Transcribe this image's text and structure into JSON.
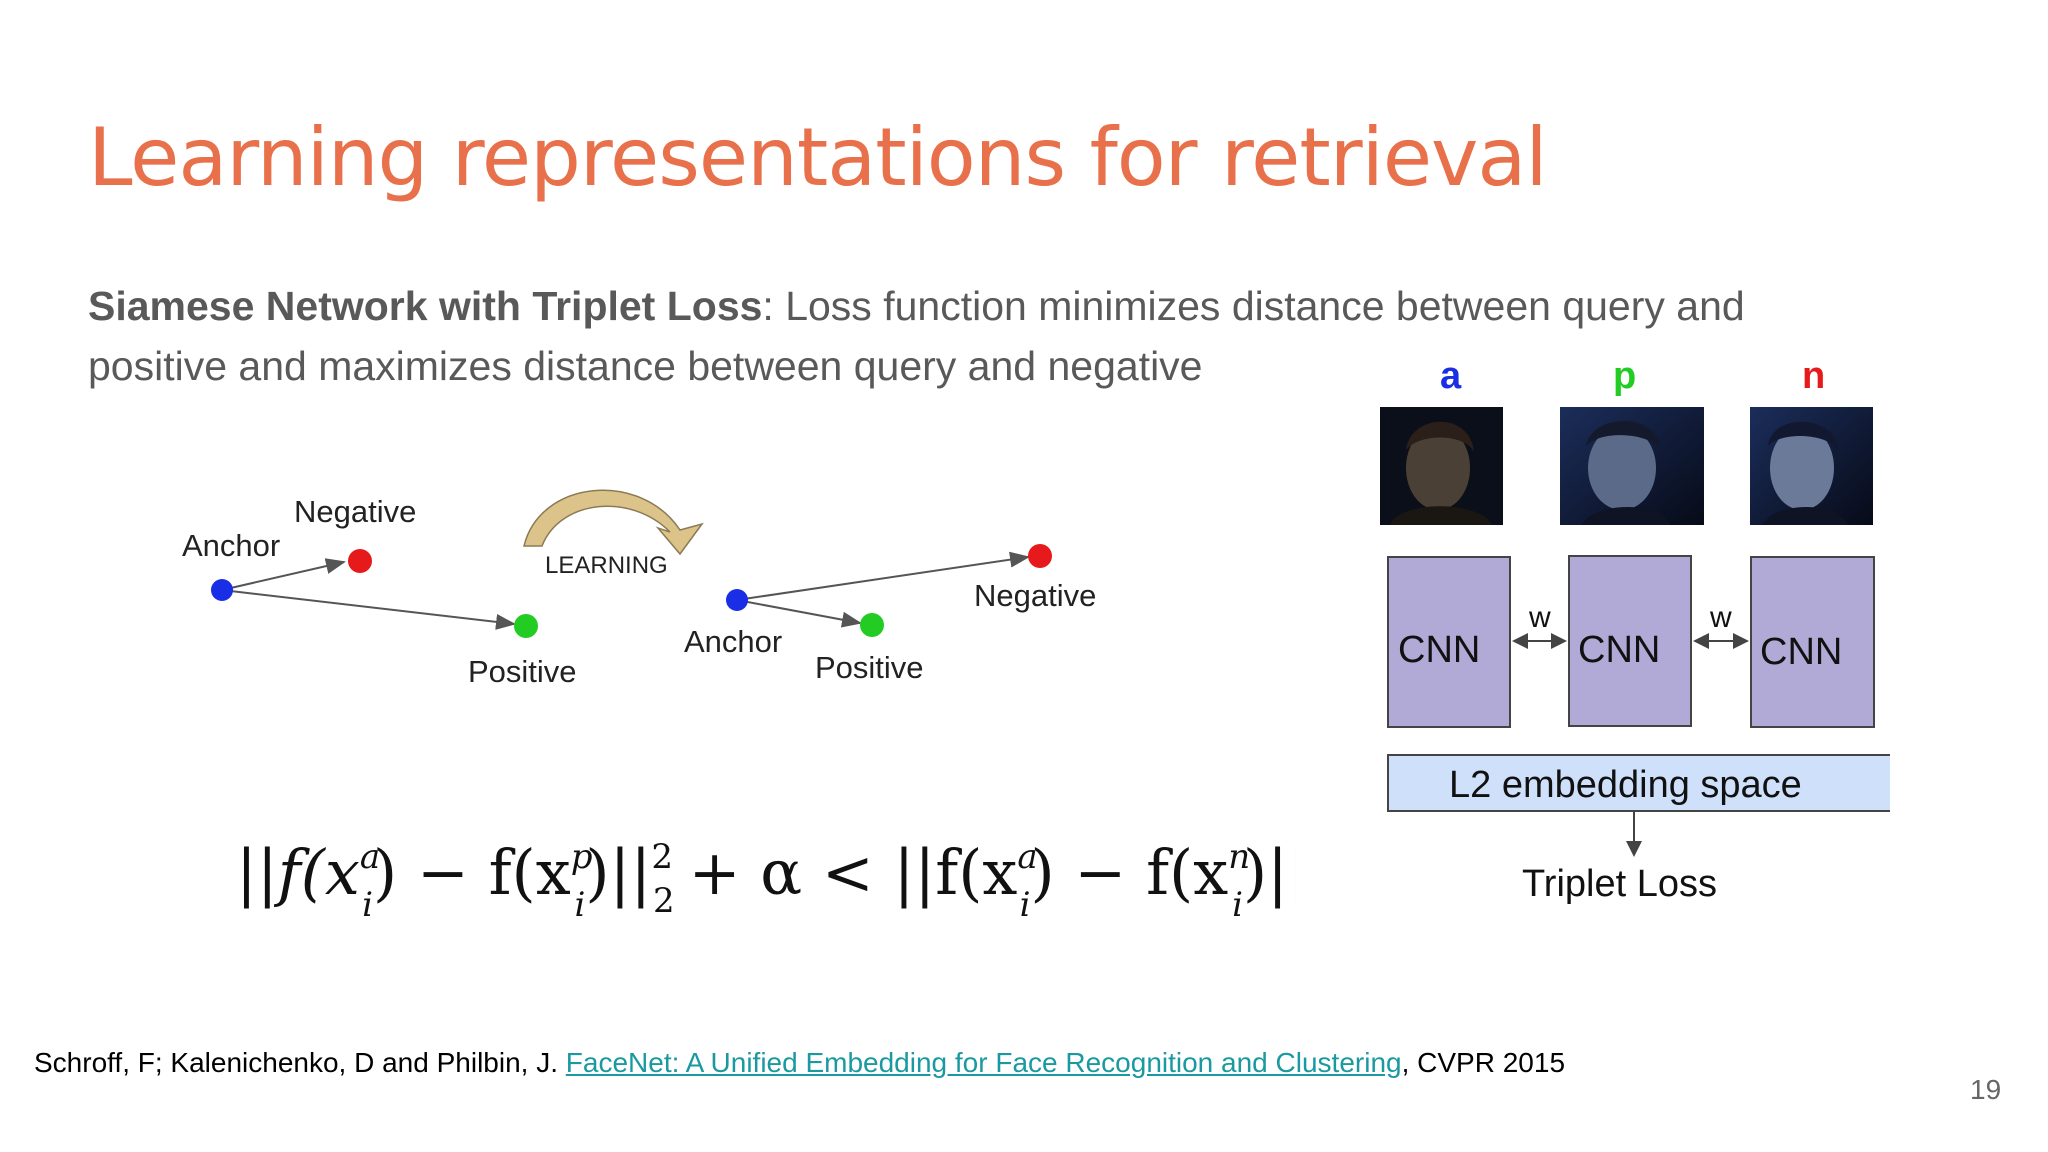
{
  "slide": {
    "title": "Learning representations for retrieval",
    "bold_lead": "Siamese Network with Triplet Loss",
    "description": ": Loss function minimizes distance between query and positive and maximizes distance between query and negative",
    "page_number": "19"
  },
  "diagram_left": {
    "before": {
      "anchor": "Anchor",
      "negative": "Negative",
      "positive": "Positive"
    },
    "learning": "LEARNING",
    "after": {
      "anchor": "Anchor",
      "negative": "Negative",
      "positive": "Positive"
    }
  },
  "colors": {
    "title": "#e8704a",
    "anchor": "#1a2ee6",
    "negative": "#e61a1a",
    "positive": "#22cc22",
    "cnn_box": "#b1a9d6",
    "embedding_box": "#cfe0fa",
    "link": "#1a9aa0"
  },
  "network": {
    "labels": {
      "a": "a",
      "p": "p",
      "n": "n"
    },
    "cnn": [
      "CNN",
      "CNN",
      "CNN"
    ],
    "weight_share": [
      "w",
      "w"
    ],
    "embedding": "L2 embedding space",
    "loss": "Triplet Loss"
  },
  "formula": {
    "norm_open": "||",
    "f1": "f(x",
    "a_sup": "a",
    "i_sub": "i",
    "minus": ")  −  f(x",
    "p_sup": "p",
    "norm_close": ")||",
    "sq": "2",
    "two": "2",
    "plus_alpha_lt": "+ α < ||f(x",
    "n_sup": "n"
  },
  "citation": {
    "authors": "Schroff, F; Kalenichenko, D and Philbin, J. ",
    "link_text": "FaceNet: A Unified Embedding for Face Recognition and Clustering",
    "venue": ", CVPR 2015"
  }
}
